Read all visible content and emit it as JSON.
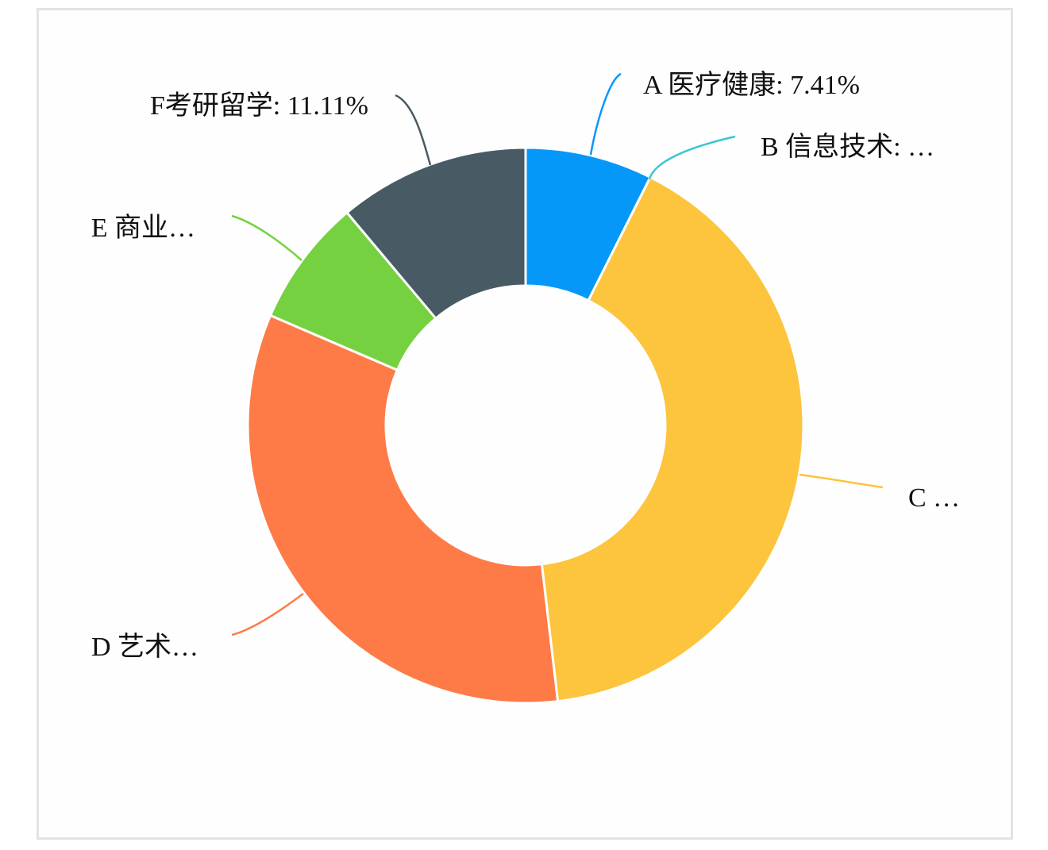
{
  "chart_data": {
    "type": "pie",
    "donut": true,
    "slices": [
      {
        "label": "A 医疗健康: 7.41%",
        "value": 7.41,
        "color": "#0598f8"
      },
      {
        "label": "B 信息技术: …",
        "value": 0,
        "color": "#3ec5d2"
      },
      {
        "label": "C …",
        "value": 40.74,
        "color": "#fdc43d"
      },
      {
        "label": "D 艺术…",
        "value": 33.33,
        "color": "#fe7b47"
      },
      {
        "label": "E 商业…",
        "value": 7.41,
        "color": "#75d13f"
      },
      {
        "label": "F考研留学: 11.11%",
        "value": 11.11,
        "color": "#485a64"
      }
    ],
    "legend": "none"
  }
}
